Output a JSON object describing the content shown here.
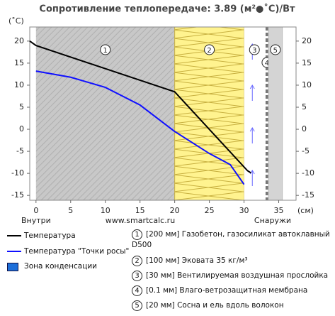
{
  "chart_data": {
    "type": "line",
    "title": "Сопротивление теплопередаче: 3.89 (м²●˚С)/Вт",
    "y_label": "(˚С)",
    "x_label": "(см)",
    "inside_label": "Внутри",
    "outside_label": "Снаружи",
    "watermark": "www.smartcalc.ru",
    "xlim": [
      -0.9,
      37.5
    ],
    "ylim": [
      -16.1,
      23.2
    ],
    "xticks": [
      0,
      5,
      10,
      15,
      20,
      25,
      30,
      35
    ],
    "yticks": [
      -15,
      -10,
      -5,
      0,
      5,
      10,
      15,
      20
    ],
    "series": [
      {
        "name": "Температура",
        "color": "#000000",
        "x": [
          -0.9,
          0,
          20,
          30.5,
          31
        ],
        "values": [
          20,
          19,
          8.5,
          -9.4,
          -9.9
        ]
      },
      {
        "name": "Температура \"Точки росы\"",
        "color": "#1010ff",
        "x": [
          0,
          5,
          10,
          15,
          20,
          25,
          28,
          30
        ],
        "values": [
          13.2,
          11.8,
          9.5,
          5.5,
          -0.5,
          -5.5,
          -8,
          -12.5
        ]
      }
    ],
    "condensation_zone": {
      "name": "Зона конденсации",
      "color": "#1e6fd9"
    },
    "layers": [
      {
        "number": 1,
        "start": 0,
        "end": 20,
        "pattern": "hatch",
        "description": "[200 мм] Газобетон, газосиликат автоклавный D500"
      },
      {
        "number": 2,
        "start": 20,
        "end": 30,
        "pattern": "zigzag",
        "description": "[100 мм] Эковата 35 кг/м³"
      },
      {
        "number": 3,
        "start": 30,
        "end": 33,
        "pattern": "air",
        "description": "[30 мм] Вентилируемая воздушная прослойка"
      },
      {
        "number": 4,
        "start": 33,
        "end": 33.01,
        "pattern": "membrane",
        "description": "[0.1 мм] Влаго-ветрозащитная мембрана"
      },
      {
        "number": 5,
        "start": 33.01,
        "end": 35.01,
        "pattern": "solid",
        "description": "[20 мм] Сосна и ель вдоль волокон"
      }
    ]
  }
}
